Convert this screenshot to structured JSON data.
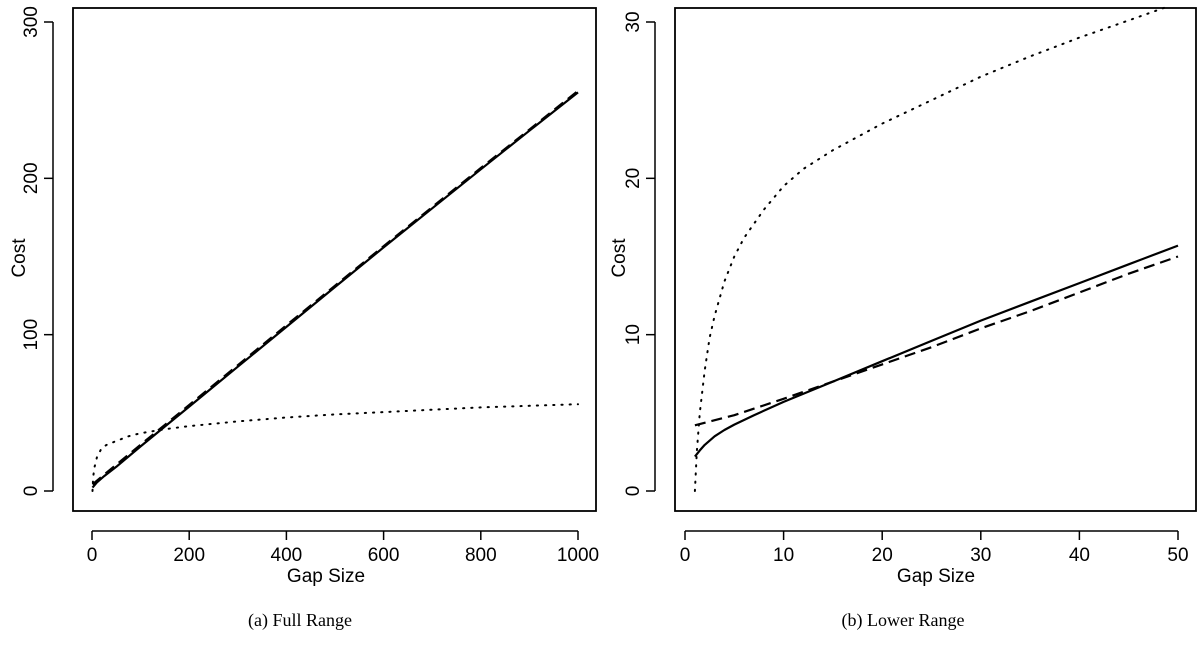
{
  "chart_data": [
    {
      "type": "line",
      "caption": "(a)  Full Range",
      "xlabel": "Gap Size",
      "ylabel": "Cost",
      "xlim": [
        0,
        1000
      ],
      "ylim": [
        0,
        300
      ],
      "xticks": [
        0,
        200,
        400,
        600,
        800,
        1000
      ],
      "yticks": [
        0,
        100,
        200,
        300
      ],
      "series": [
        {
          "style": "solid",
          "x": [
            1,
            10,
            25,
            50,
            100,
            200,
            300,
            400,
            500,
            600,
            700,
            800,
            900,
            1000
          ],
          "y": [
            2.2,
            5.5,
            9.5,
            15.5,
            28.5,
            54,
            79.5,
            105,
            130.5,
            155.8,
            180.8,
            205.8,
            230.5,
            255
          ]
        },
        {
          "style": "dashed",
          "x": [
            1,
            10,
            25,
            50,
            100,
            200,
            300,
            400,
            500,
            600,
            700,
            800,
            900,
            1000
          ],
          "y": [
            4.2,
            6.6,
            10.5,
            16.8,
            29.6,
            55,
            80.5,
            106,
            131.3,
            156.6,
            181.6,
            206.6,
            231.2,
            256
          ]
        },
        {
          "style": "dotted",
          "x": [
            1,
            2,
            3,
            5,
            10,
            20,
            30,
            50,
            75,
            100,
            150,
            200,
            300,
            400,
            500,
            600,
            700,
            800,
            900,
            1000
          ],
          "y": [
            0,
            6.5,
            10.5,
            15,
            21.5,
            27.5,
            29.5,
            32,
            35,
            37,
            39.5,
            41.5,
            44.5,
            47,
            49,
            50.5,
            52,
            53.5,
            54.5,
            55.5
          ]
        }
      ]
    },
    {
      "type": "line",
      "caption": "(b)  Lower Range",
      "xlabel": "Gap Size",
      "ylabel": "Cost",
      "xlim": [
        0,
        50
      ],
      "ylim": [
        0,
        30
      ],
      "xticks": [
        0,
        10,
        20,
        30,
        40,
        50
      ],
      "yticks": [
        0,
        10,
        20,
        30
      ],
      "series": [
        {
          "style": "solid",
          "x": [
            1,
            1.5,
            2,
            3,
            4,
            5,
            7,
            10,
            15,
            20,
            25,
            30,
            35,
            40,
            45,
            50
          ],
          "y": [
            2.2,
            2.6,
            2.95,
            3.5,
            3.9,
            4.25,
            4.85,
            5.7,
            7.0,
            8.3,
            9.6,
            10.9,
            12.1,
            13.3,
            14.5,
            15.7
          ]
        },
        {
          "style": "dashed",
          "x": [
            1,
            5,
            10,
            15,
            20,
            25,
            30,
            35,
            40,
            45,
            50
          ],
          "y": [
            4.2,
            4.85,
            5.9,
            7.0,
            8.1,
            9.2,
            10.4,
            11.5,
            12.7,
            13.9,
            15.0
          ]
        },
        {
          "style": "dotted",
          "x": [
            1,
            1.2,
            1.5,
            2,
            2.5,
            3,
            4,
            5,
            6,
            8,
            10,
            12,
            15,
            20,
            25,
            30,
            35,
            40,
            45,
            49
          ],
          "y": [
            0,
            2.5,
            5.0,
            7.7,
            9.8,
            11.2,
            13.4,
            15.0,
            16.2,
            18.0,
            19.5,
            20.6,
            21.8,
            23.5,
            25.0,
            26.5,
            27.8,
            29.0,
            30.1,
            31.0
          ]
        }
      ]
    }
  ]
}
